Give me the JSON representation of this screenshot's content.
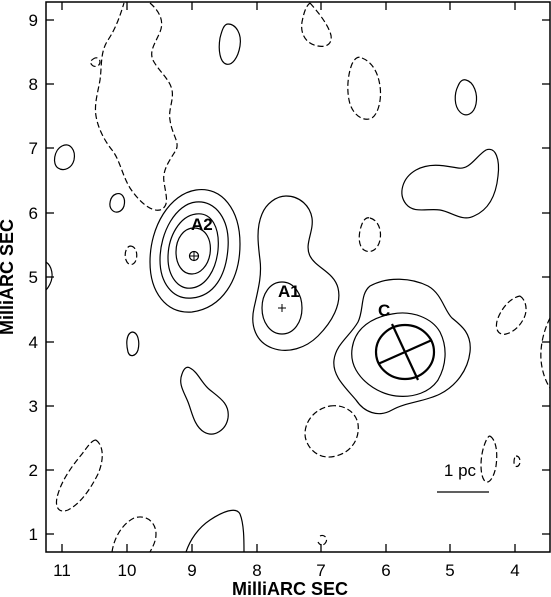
{
  "figure": {
    "xlabel": "MilliARC SEC",
    "ylabel": "MilliARC SEC",
    "x_ticks": [
      "11",
      "10",
      "9",
      "8",
      "7",
      "6",
      "5",
      "4"
    ],
    "y_ticks": [
      "1",
      "2",
      "3",
      "4",
      "5",
      "6",
      "7",
      "8",
      "9"
    ],
    "x_range": [
      11.3,
      3.5
    ],
    "y_range": [
      0.7,
      9.3
    ],
    "components": {
      "a2": "A2",
      "a1": "A1",
      "c": "C"
    },
    "scale_bar": "1 pc"
  }
}
